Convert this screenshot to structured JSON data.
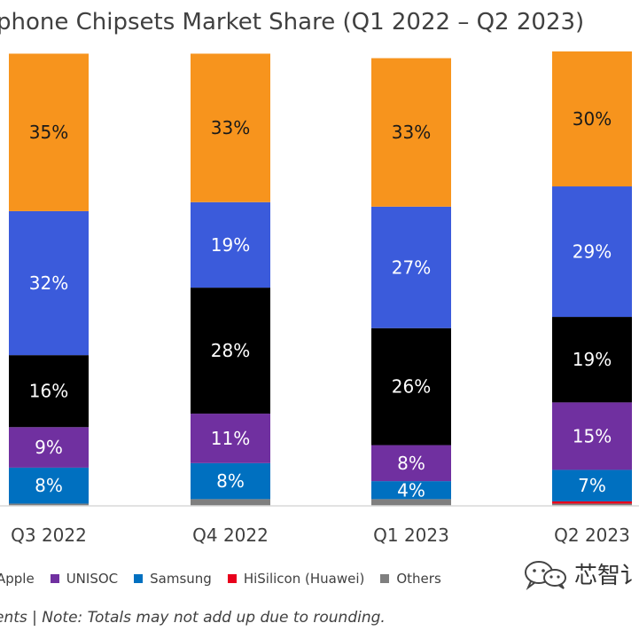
{
  "title": "phone Chipsets Market Share (Q1 2022 – Q2 2023)",
  "source_note": "ents | Note: Totals may not add up due to rounding.",
  "watermark_text": "芯智讠",
  "legend": [
    {
      "label": "Apple",
      "color": "#000000"
    },
    {
      "label": "UNISOC",
      "color": "#7030A0"
    },
    {
      "label": "Samsung",
      "color": "#0070C0"
    },
    {
      "label": "HiSilicon (Huawei)",
      "color": "#E8001C"
    },
    {
      "label": "Others",
      "color": "#7F7F7F"
    }
  ],
  "chart_data": {
    "type": "bar",
    "stacked": true,
    "categories": [
      "Q3 2022",
      "Q4 2022",
      "Q1 2023",
      "Q2 2023"
    ],
    "series": [
      {
        "name": "Others",
        "color": "#7F7F7F",
        "values": [
          0.5,
          1.5,
          1.5,
          0.5
        ],
        "labels": [
          "",
          "",
          "",
          ""
        ]
      },
      {
        "name": "HiSilicon (Huawei)",
        "color": "#E8001C",
        "values": [
          0,
          0,
          0,
          0.5
        ],
        "labels": [
          "",
          "",
          "",
          ""
        ]
      },
      {
        "name": "Samsung",
        "color": "#0070C0",
        "values": [
          8,
          8,
          4,
          7
        ],
        "labels": [
          "8%",
          "8%",
          "4%",
          "7%"
        ]
      },
      {
        "name": "UNISOC",
        "color": "#7030A0",
        "values": [
          9,
          11,
          8,
          15
        ],
        "labels": [
          "9%",
          "11%",
          "8%",
          "15%"
        ]
      },
      {
        "name": "Apple",
        "color": "#000000",
        "values": [
          16,
          28,
          26,
          19
        ],
        "labels": [
          "16%",
          "28%",
          "26%",
          "19%"
        ]
      },
      {
        "color": "#3B5BDB",
        "values": [
          32,
          19,
          27,
          29
        ],
        "labels": [
          "32%",
          "19%",
          "27%",
          "29%"
        ]
      },
      {
        "color": "#F7941D",
        "values": [
          35,
          33,
          33,
          30
        ],
        "labels": [
          "35%",
          "33%",
          "33%",
          "30%"
        ]
      }
    ],
    "ylim": [
      0,
      100
    ],
    "grid": false,
    "legend_position": "bottom"
  }
}
